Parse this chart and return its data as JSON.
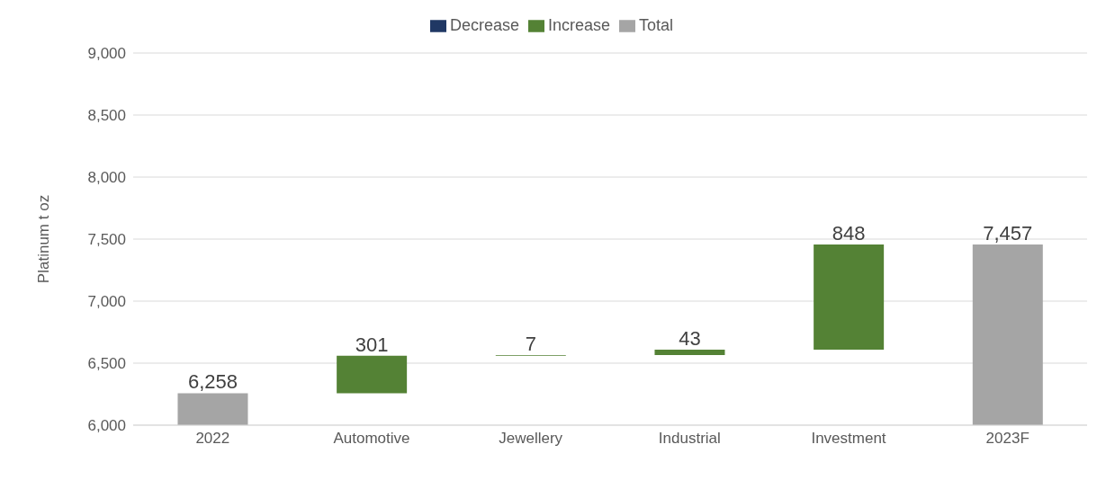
{
  "chart_data": {
    "type": "bar",
    "categories": [
      "2022",
      "Automotive",
      "Jewellery",
      "Industrial",
      "Investment",
      "2023F"
    ],
    "series": [
      {
        "name": "Increase",
        "color": "#548235",
        "values": [
          null,
          301,
          7,
          43,
          848,
          null
        ],
        "base": [
          null,
          6258,
          6559,
          6566,
          6609,
          null
        ],
        "value_labels": [
          null,
          "301",
          "7",
          "43",
          "848",
          null
        ]
      },
      {
        "name": "Decrease",
        "color": "#203864",
        "values": [
          null,
          null,
          null,
          null,
          null,
          null
        ]
      },
      {
        "name": "Total",
        "color": "#a5a5a5",
        "values": [
          6258,
          null,
          null,
          null,
          null,
          7457
        ],
        "value_labels": [
          "6,258",
          null,
          null,
          null,
          null,
          "7,457"
        ]
      }
    ],
    "ylabel": "Platinum t oz",
    "ylim": [
      6000,
      9000
    ],
    "yticks": [
      {
        "value": 6000,
        "label": "6,000"
      },
      {
        "value": 6500,
        "label": "6,500"
      },
      {
        "value": 7000,
        "label": "7,000"
      },
      {
        "value": 7500,
        "label": "7,500"
      },
      {
        "value": 8000,
        "label": "8,000"
      },
      {
        "value": 8500,
        "label": "8,500"
      },
      {
        "value": 9000,
        "label": "9,000"
      }
    ],
    "grid": "y",
    "legend": "top"
  }
}
